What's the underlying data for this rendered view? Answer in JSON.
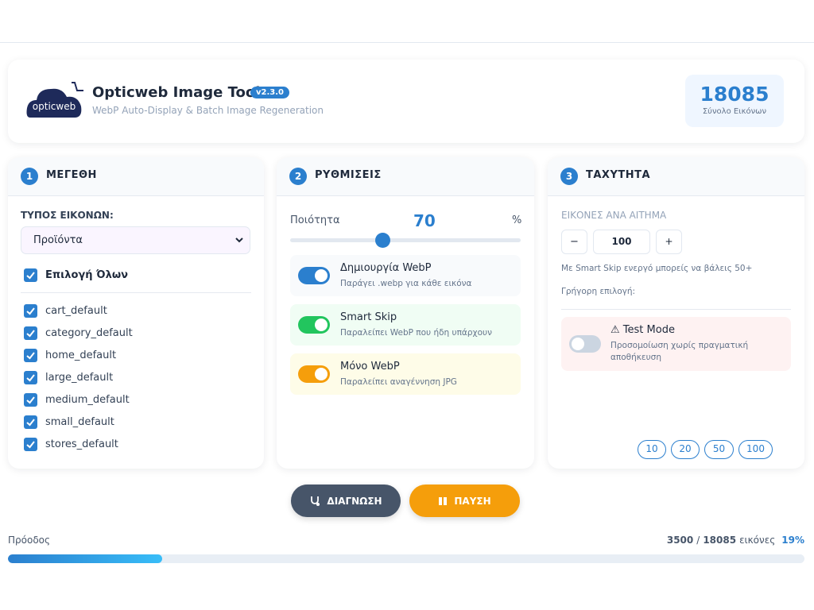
{
  "header": {
    "logo_text": "opticweb",
    "title": "Opticweb Image Tool",
    "version": "v2.3.0",
    "subtitle": "WebP Auto-Display & Batch Image Regeneration",
    "total": {
      "value": "18085",
      "label": "Σύνολο Εικόνων"
    }
  },
  "sizes": {
    "number": "1",
    "title": "ΜΕΓΕΘΗ",
    "type_label": "ΤΥΠΟΣ ΕΙΚΟΝΩΝ:",
    "select": "Προϊόντα",
    "select_all": "Επιλογή Όλων",
    "items": [
      "cart_default",
      "category_default",
      "home_default",
      "large_default",
      "medium_default",
      "small_default",
      "stores_default"
    ]
  },
  "settings": {
    "number": "2",
    "title": "ΡΥΘΜΙΣΕΙΣ",
    "quality_label": "Ποιότητα",
    "quality": "70",
    "quality_unit": "%",
    "toggles": [
      {
        "label": "Δημιουργία WebP",
        "description": "Παράγει .webp για κάθε εικόνα",
        "on": true,
        "color": "#2b7fce",
        "background": "#f8fafc"
      },
      {
        "label": "Smart Skip",
        "description": "Παραλείπει WebP που ήδη υπάρχουν",
        "on": true,
        "color": "#22c55e",
        "background": "#f0fdf4"
      },
      {
        "label": "Μόνο WebP",
        "description": "Παραλείπει αναγέννηση JPG",
        "on": true,
        "color": "#f59e0b",
        "background": "#fefce8"
      }
    ]
  },
  "speed": {
    "number": "3",
    "title": "ΤΑΧΥΤΗΤΑ",
    "batch_label": "ΕΙΚΟΝΕΣ ΑΝΑ ΑΙΤΗΜΑ",
    "minus": "−",
    "batch": "100",
    "plus": "+",
    "hint": "Με Smart Skip ενεργό μπορείς να βάλεις 50+",
    "quick_label": "Γρήγορη επιλογή:",
    "quick": [
      "10",
      "20",
      "50",
      "100"
    ],
    "test_mode": {
      "title": "⚠ Test Mode",
      "description": "Προσομοίωση χωρίς πραγματική αποθήκευση",
      "on": false
    }
  },
  "buttons": {
    "diagnose": "ΔΙΑΓΝΩΣΗ",
    "pause": "ΠΑΥΣΗ"
  },
  "progress": {
    "label": "Πρόοδος",
    "done": 3500,
    "separator": "/",
    "total": 18085,
    "unit": "εικόνες",
    "percent": "19%"
  }
}
